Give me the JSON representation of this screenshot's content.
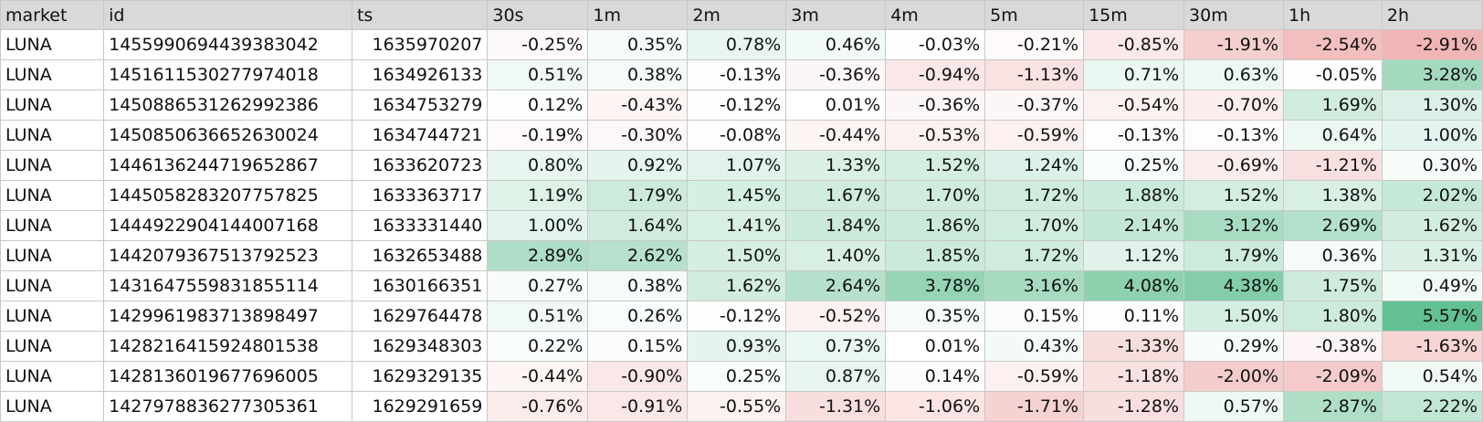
{
  "columns": [
    "market",
    "id",
    "ts",
    "30s",
    "1m",
    "2m",
    "3m",
    "4m",
    "5m",
    "15m",
    "30m",
    "1h",
    "2h"
  ],
  "rows": [
    {
      "market": "LUNA",
      "id": "1455990694439383042",
      "ts": "1635970207",
      "changes": [
        "-0.25%",
        "0.35%",
        "0.78%",
        "0.46%",
        "-0.03%",
        "-0.21%",
        "-0.85%",
        "-1.91%",
        "-2.54%",
        "-2.91%"
      ]
    },
    {
      "market": "LUNA",
      "id": "1451611530277974018",
      "ts": "1634926133",
      "changes": [
        "0.51%",
        "0.38%",
        "-0.13%",
        "-0.36%",
        "-0.94%",
        "-1.13%",
        "0.71%",
        "0.63%",
        "-0.05%",
        "3.28%"
      ]
    },
    {
      "market": "LUNA",
      "id": "1450886531262992386",
      "ts": "1634753279",
      "changes": [
        "0.12%",
        "-0.43%",
        "-0.12%",
        "0.01%",
        "-0.36%",
        "-0.37%",
        "-0.54%",
        "-0.70%",
        "1.69%",
        "1.30%"
      ]
    },
    {
      "market": "LUNA",
      "id": "1450850636652630024",
      "ts": "1634744721",
      "changes": [
        "-0.19%",
        "-0.30%",
        "-0.08%",
        "-0.44%",
        "-0.53%",
        "-0.59%",
        "-0.13%",
        "-0.13%",
        "0.64%",
        "1.00%"
      ]
    },
    {
      "market": "LUNA",
      "id": "1446136244719652867",
      "ts": "1633620723",
      "changes": [
        "0.80%",
        "0.92%",
        "1.07%",
        "1.33%",
        "1.52%",
        "1.24%",
        "0.25%",
        "-0.69%",
        "-1.21%",
        "0.30%"
      ]
    },
    {
      "market": "LUNA",
      "id": "1445058283207757825",
      "ts": "1633363717",
      "changes": [
        "1.19%",
        "1.79%",
        "1.45%",
        "1.67%",
        "1.70%",
        "1.72%",
        "1.88%",
        "1.52%",
        "1.38%",
        "2.02%"
      ]
    },
    {
      "market": "LUNA",
      "id": "1444922904144007168",
      "ts": "1633331440",
      "changes": [
        "1.00%",
        "1.64%",
        "1.41%",
        "1.84%",
        "1.86%",
        "1.70%",
        "2.14%",
        "3.12%",
        "2.69%",
        "1.62%"
      ]
    },
    {
      "market": "LUNA",
      "id": "1442079367513792523",
      "ts": "1632653488",
      "changes": [
        "2.89%",
        "2.62%",
        "1.50%",
        "1.40%",
        "1.85%",
        "1.72%",
        "1.12%",
        "1.79%",
        "0.36%",
        "1.31%"
      ]
    },
    {
      "market": "LUNA",
      "id": "1431647559831855114",
      "ts": "1630166351",
      "changes": [
        "0.27%",
        "0.38%",
        "1.62%",
        "2.64%",
        "3.78%",
        "3.16%",
        "4.08%",
        "4.38%",
        "1.75%",
        "0.49%"
      ]
    },
    {
      "market": "LUNA",
      "id": "1429961983713898497",
      "ts": "1629764478",
      "changes": [
        "0.51%",
        "0.26%",
        "-0.12%",
        "-0.52%",
        "0.35%",
        "0.15%",
        "0.11%",
        "1.50%",
        "1.80%",
        "5.57%"
      ]
    },
    {
      "market": "LUNA",
      "id": "1428216415924801538",
      "ts": "1629348303",
      "changes": [
        "0.22%",
        "0.15%",
        "0.93%",
        "0.73%",
        "0.01%",
        "0.43%",
        "-1.33%",
        "0.29%",
        "-0.38%",
        "-1.63%"
      ]
    },
    {
      "market": "LUNA",
      "id": "1428136019677696005",
      "ts": "1629329135",
      "changes": [
        "-0.44%",
        "-0.90%",
        "0.25%",
        "0.87%",
        "0.14%",
        "-0.59%",
        "-1.18%",
        "-2.00%",
        "-2.09%",
        "0.54%"
      ]
    },
    {
      "market": "LUNA",
      "id": "1427978836277305361",
      "ts": "1629291659",
      "changes": [
        "-0.76%",
        "-0.91%",
        "-0.55%",
        "-1.31%",
        "-1.06%",
        "-1.71%",
        "-1.28%",
        "0.57%",
        "2.87%",
        "2.22%"
      ]
    }
  ],
  "colors": {
    "header_bg": "#d9d9d9",
    "grid_line": "#c8c8c8",
    "positive": "#57bb8a",
    "negative": "#e06666",
    "neutral": "#ffffff"
  }
}
